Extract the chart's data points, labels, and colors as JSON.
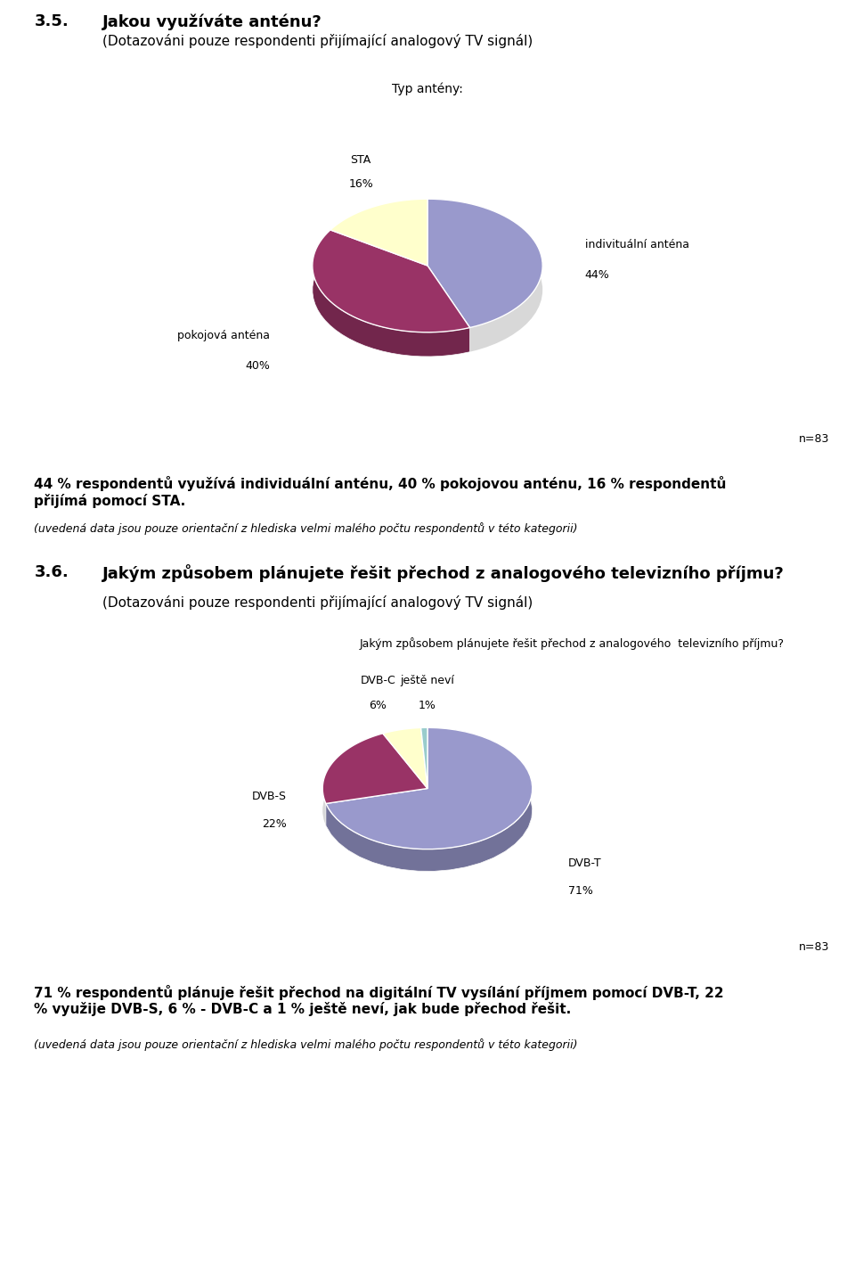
{
  "section1_number": "3.5.",
  "section1_title": "Jakou využíváte anténu?",
  "section1_subtitle": "(Dotazováni pouze respondenti přijímající analogový TV signál)",
  "chart1_title": "Typ antény:",
  "chart1_labels": [
    "indivituální anténa\n44%",
    "pokojová anténa\n40%",
    "STA\n16%"
  ],
  "chart1_values": [
    44,
    40,
    16
  ],
  "chart1_colors": [
    "#9999cc",
    "#993366",
    "#ffffcc"
  ],
  "chart1_label_names": [
    "indivituální anténa",
    "pokojová anténa",
    "STA"
  ],
  "chart1_label_pcts": [
    "44%",
    "40%",
    "16%"
  ],
  "n1": "n=83",
  "text1_bold": "44 % respondentů využívá individuální anténu, 40 % pokojovou anténu, 16 % respondentů\npřijímá pomocí STA.",
  "text1_italic": "(uvedená data jsou pouze orientační z hlediska velmi malého počtu respondentů v této kategorii)",
  "section2_number": "3.6.",
  "section2_title": "Jakým způsobem plánujete řešit přechod z analogového televizního příjmu?",
  "section2_subtitle": "(Dotazováni pouze respondenti přijímající analogový TV signál)",
  "chart2_title": "Jakým způsobem plánujete řešit přechod z analogového  televizního příjmu?",
  "chart2_labels": [
    "DVB-T\n71%",
    "DVB-S\n22%",
    "DVB-C\n6%",
    "ještě neví\n1%"
  ],
  "chart2_values": [
    71,
    22,
    6,
    1
  ],
  "chart2_colors": [
    "#9999cc",
    "#993366",
    "#ffffcc",
    "#99cccc"
  ],
  "chart2_label_names": [
    "DVB-T",
    "DVB-S",
    "DVB-C",
    "ještě neví"
  ],
  "chart2_label_pcts": [
    "71%",
    "22%",
    "6%",
    "1%"
  ],
  "n2": "n=83",
  "text2_bold": "71 % respondentů plánuje řešit přechod na digitální TV vysílání příjmem pomocí DVB-T, 22\n% využije DVB-S, 6 % - DVB-C a 1 % ještě neví, jak bude přechod řešit.",
  "text2_italic": "(uvedená data jsou pouze orientační z hlediska velmi malého počtu respondentů v této kategorii)"
}
